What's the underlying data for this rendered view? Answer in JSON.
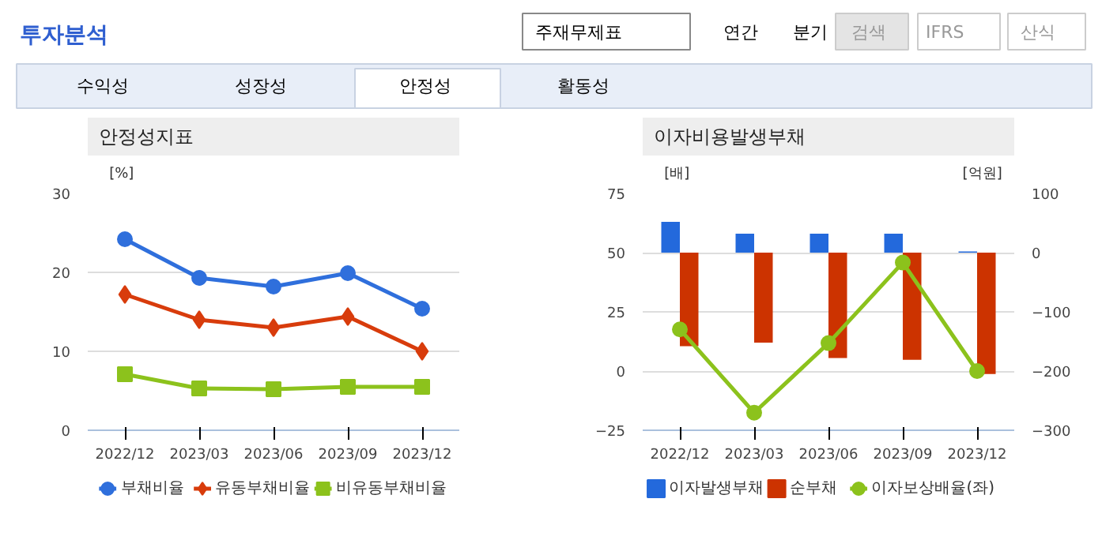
{
  "chart_data": [
    {
      "type": "other",
      "title": "투자분석",
      "annotations": [
        "주재무제표",
        "연간",
        "분기",
        "검색",
        "IFRS",
        "산식",
        "수익성",
        "성장성",
        "안정성",
        "활동성"
      ]
    },
    {
      "type": "line",
      "title": "안정성지표",
      "ylabel": "[%]",
      "categories": [
        "2022/12",
        "2023/03",
        "2023/06",
        "2023/09",
        "2023/12"
      ],
      "ylim": [
        0,
        30
      ],
      "yticks": [
        0,
        10,
        20,
        30
      ],
      "grid": "y",
      "legend": "bottom",
      "series": [
        {
          "name": "부채비율",
          "color": "#2f6fdc",
          "marker": "circle",
          "values": [
            24.2,
            19.3,
            18.2,
            19.9,
            15.4
          ]
        },
        {
          "name": "유동부채비율",
          "color": "#d83c0c",
          "marker": "diamond",
          "values": [
            17.2,
            14.0,
            13.0,
            14.4,
            10.0
          ]
        },
        {
          "name": "비유동부채비율",
          "color": "#8cc21c",
          "marker": "square",
          "values": [
            7.1,
            5.3,
            5.2,
            5.5,
            5.5
          ]
        }
      ]
    },
    {
      "type": "bar",
      "title": "이자비용발생부채",
      "ylabel": "[배]",
      "y2label": "[억원]",
      "categories": [
        "2022/12",
        "2023/03",
        "2023/06",
        "2023/09",
        "2023/12"
      ],
      "ylim": [
        -25,
        75
      ],
      "yticks": [
        -25,
        0,
        25,
        50,
        75
      ],
      "y2lim": [
        -300,
        100
      ],
      "y2ticks": [
        -300,
        -200,
        -100,
        0,
        100
      ],
      "grid": "y",
      "legend": "bottom",
      "series": [
        {
          "name": "이자발생부채",
          "color": "#2369dc",
          "axis": "y2",
          "values": [
            52,
            32,
            32,
            32,
            2
          ]
        },
        {
          "name": "순부채",
          "color": "#cc3300",
          "axis": "y2",
          "values": [
            -158,
            -152,
            -178,
            -181,
            -205
          ]
        },
        {
          "name": "이자보상배율(좌)",
          "type": "line",
          "color": "#8cc21c",
          "marker": "circle",
          "values": [
            17.6,
            -17.6,
            11.8,
            45.8,
            0
          ]
        }
      ]
    }
  ]
}
